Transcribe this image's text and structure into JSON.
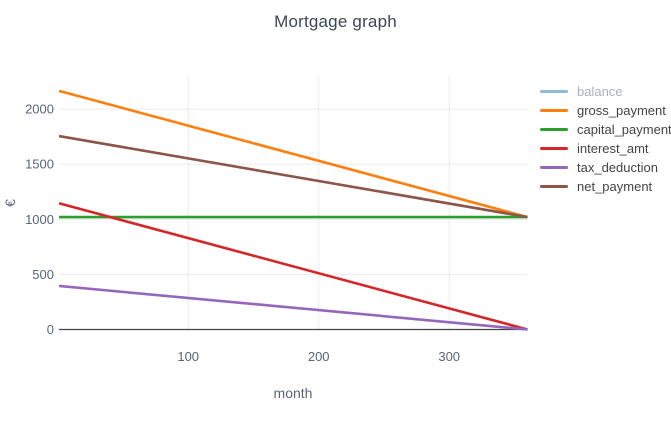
{
  "chart_data": {
    "type": "line",
    "title": "Mortgage graph",
    "xlabel": "month",
    "ylabel": "€",
    "x_range": [
      1,
      360
    ],
    "y_range": [
      0,
      2300
    ],
    "x_ticks": [
      100,
      200,
      300
    ],
    "y_ticks": [
      0,
      500,
      1000,
      1500,
      2000
    ],
    "grid": true,
    "legend_position": "right",
    "series": [
      {
        "name": "balance",
        "color": "#1f77b4",
        "legend_color": "#8fbbd9",
        "hidden": true,
        "x": [],
        "y": []
      },
      {
        "name": "gross_payment",
        "color": "#ff7f0e",
        "hidden": false,
        "x": [
          1,
          360
        ],
        "y": [
          2165,
          1020
        ]
      },
      {
        "name": "capital_payment",
        "color": "#2ca02c",
        "hidden": false,
        "x": [
          1,
          360
        ],
        "y": [
          1020,
          1020
        ]
      },
      {
        "name": "interest_amt",
        "color": "#d62728",
        "hidden": false,
        "x": [
          1,
          360
        ],
        "y": [
          1145,
          0
        ]
      },
      {
        "name": "tax_deduction",
        "color": "#9467bd",
        "hidden": false,
        "x": [
          1,
          360
        ],
        "y": [
          395,
          0
        ]
      },
      {
        "name": "net_payment",
        "color": "#8c564b",
        "hidden": false,
        "x": [
          1,
          360
        ],
        "y": [
          1755,
          1020
        ]
      }
    ]
  },
  "colors": {
    "gridline": "#ebebeb",
    "zeroline": "#444444",
    "tick_text": "#5b6575",
    "axis_title_text": "#5b6575",
    "title_text": "#3d4654",
    "legend_text": "#444444",
    "legend_muted_text": "#acb0b5",
    "background": "#ffffff"
  }
}
